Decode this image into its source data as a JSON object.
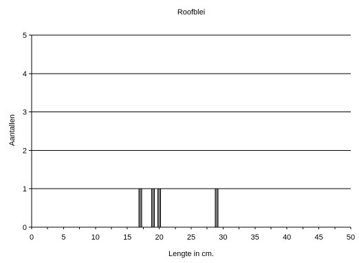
{
  "chart_data": {
    "type": "bar",
    "title": "Roofblei",
    "xlabel": "Lengte in cm.",
    "ylabel": "Aantallen",
    "xlim": [
      0,
      50
    ],
    "ylim": [
      0,
      5
    ],
    "x_ticks": [
      0,
      5,
      10,
      15,
      20,
      25,
      30,
      35,
      40,
      45,
      50
    ],
    "y_ticks": [
      0,
      1,
      2,
      3,
      4,
      5
    ],
    "grid": "horizontal",
    "legend": "none",
    "bar_color": "#808080",
    "x": [
      17,
      19,
      20,
      29
    ],
    "values": [
      1,
      1,
      1,
      1
    ]
  }
}
